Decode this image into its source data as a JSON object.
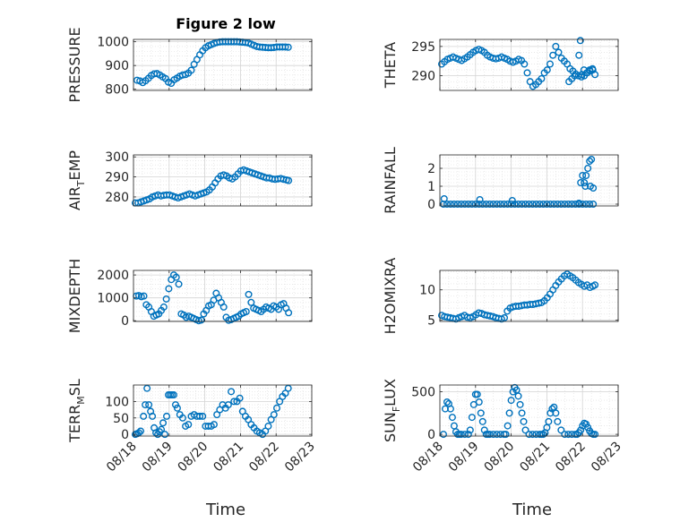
{
  "figure": {
    "title": "Figure 2 low",
    "marker_color": "#0072BD",
    "xlabel": "Time",
    "xticks": [
      18,
      19,
      20,
      21,
      22,
      23
    ],
    "xtick_labels": [
      "08/18",
      "08/19",
      "08/20",
      "08/21",
      "08/22",
      "08/23"
    ]
  },
  "chart_data": [
    {
      "type": "scatter",
      "ylabel": "PRESSURE",
      "ylabel_sub": "",
      "xlim": [
        18,
        23
      ],
      "ylim": [
        795,
        1010
      ],
      "yticks": [
        800,
        900,
        1000
      ],
      "ytick_labels": [
        "800",
        "900",
        "1000"
      ],
      "x": [
        18.1,
        18.18,
        18.26,
        18.34,
        18.42,
        18.5,
        18.58,
        18.66,
        18.74,
        18.82,
        18.9,
        18.98,
        19.06,
        19.14,
        19.22,
        19.3,
        19.38,
        19.46,
        19.54,
        19.62,
        19.7,
        19.78,
        19.86,
        19.94,
        20.02,
        20.1,
        20.18,
        20.26,
        20.34,
        20.42,
        20.5,
        20.58,
        20.66,
        20.74,
        20.82,
        20.9,
        20.98,
        21.06,
        21.14,
        21.22,
        21.3,
        21.38,
        21.46,
        21.54,
        21.62,
        21.7,
        21.78,
        21.86,
        21.94,
        22.02,
        22.1,
        22.18,
        22.26,
        22.34
      ],
      "y": [
        838,
        835,
        828,
        836,
        846,
        858,
        865,
        866,
        860,
        852,
        845,
        830,
        825,
        840,
        847,
        855,
        860,
        862,
        868,
        880,
        905,
        925,
        945,
        962,
        975,
        983,
        988,
        993,
        997,
        999,
        1000,
        1000,
        1000,
        1000,
        1000,
        1000,
        999,
        998,
        997,
        995,
        990,
        985,
        980,
        978,
        977,
        976,
        975,
        975,
        976,
        978,
        978,
        978,
        978,
        977
      ]
    },
    {
      "type": "scatter",
      "ylabel": "THETA",
      "ylabel_sub": "",
      "xlim": [
        18,
        23
      ],
      "ylim": [
        287.5,
        296.2
      ],
      "yticks": [
        290,
        295
      ],
      "ytick_labels": [
        "290",
        "295"
      ],
      "x": [
        18.05,
        18.13,
        18.21,
        18.29,
        18.37,
        18.45,
        18.53,
        18.61,
        18.69,
        18.77,
        18.85,
        18.93,
        19.01,
        19.09,
        19.17,
        19.25,
        19.33,
        19.41,
        19.49,
        19.57,
        19.65,
        19.73,
        19.81,
        19.89,
        19.97,
        20.05,
        20.13,
        20.21,
        20.29,
        20.37,
        20.45,
        20.53,
        20.61,
        20.69,
        20.77,
        20.85,
        20.93,
        21.01,
        21.09,
        21.17,
        21.25,
        21.33,
        21.41,
        21.49,
        21.57,
        21.65,
        21.73,
        21.81,
        21.89,
        21.97,
        22.05,
        22.13,
        22.21,
        22.29,
        22.35,
        22.28,
        22.2,
        22.12,
        22.04,
        21.98,
        21.9,
        21.94,
        21.62,
        21.7,
        21.78
      ],
      "y": [
        292.0,
        292.4,
        292.8,
        293.0,
        293.2,
        293.0,
        292.8,
        292.6,
        292.9,
        293.2,
        293.6,
        294.0,
        294.3,
        294.5,
        294.3,
        294.0,
        293.5,
        293.2,
        293.0,
        292.9,
        293.0,
        293.2,
        293.0,
        292.8,
        292.5,
        292.3,
        292.5,
        292.8,
        292.6,
        292.0,
        290.5,
        289.0,
        288.2,
        288.5,
        289.0,
        289.5,
        290.5,
        291.0,
        292.0,
        293.5,
        295.0,
        294.0,
        293.0,
        292.5,
        292.0,
        291.2,
        290.8,
        290.3,
        290.0,
        289.8,
        290.0,
        290.5,
        290.8,
        291.0,
        290.2,
        291.2,
        291.0,
        290.5,
        291.0,
        290.2,
        293.5,
        296.0,
        289.0,
        289.5,
        290.0
      ]
    },
    {
      "type": "scatter",
      "ylabel": "AIR",
      "ylabel_sub": "T",
      "ylabel_tail": "EMP",
      "xlim": [
        18,
        23
      ],
      "ylim": [
        275.5,
        301
      ],
      "yticks": [
        280,
        290,
        300
      ],
      "ytick_labels": [
        "280",
        "290",
        "300"
      ],
      "x": [
        18.05,
        18.13,
        18.21,
        18.29,
        18.37,
        18.45,
        18.53,
        18.61,
        18.69,
        18.77,
        18.85,
        18.93,
        19.01,
        19.09,
        19.17,
        19.25,
        19.33,
        19.41,
        19.49,
        19.57,
        19.65,
        19.73,
        19.81,
        19.89,
        19.97,
        20.05,
        20.13,
        20.21,
        20.29,
        20.37,
        20.45,
        20.53,
        20.61,
        20.69,
        20.77,
        20.85,
        20.93,
        21.01,
        21.09,
        21.17,
        21.25,
        21.33,
        21.41,
        21.49,
        21.57,
        21.65,
        21.73,
        21.81,
        21.89,
        21.97,
        22.05,
        22.13,
        22.21,
        22.29,
        22.35
      ],
      "y": [
        277.0,
        277.0,
        277.5,
        278.0,
        278.5,
        279.0,
        280.0,
        280.5,
        281.0,
        280.5,
        280.8,
        281.0,
        281.0,
        280.5,
        280.0,
        279.5,
        280.0,
        280.5,
        281.0,
        281.5,
        281.0,
        280.5,
        281.0,
        281.5,
        282.0,
        282.5,
        283.5,
        285.0,
        287.0,
        289.0,
        290.5,
        291.0,
        290.5,
        289.5,
        289.0,
        290.0,
        291.5,
        293.0,
        293.5,
        293.0,
        292.5,
        292.0,
        291.5,
        291.0,
        290.5,
        290.0,
        289.5,
        289.5,
        289.0,
        288.8,
        289.0,
        289.2,
        288.8,
        288.5,
        288.2
      ]
    },
    {
      "type": "scatter",
      "ylabel": "RAINFALL",
      "ylabel_sub": "",
      "xlim": [
        18,
        23
      ],
      "ylim": [
        -0.1,
        2.75
      ],
      "yticks": [
        0,
        1,
        2
      ],
      "ytick_labels": [
        "0",
        "1",
        "2"
      ],
      "x": [
        18.1,
        18.2,
        18.3,
        18.4,
        18.5,
        18.6,
        18.7,
        18.8,
        18.9,
        19.0,
        19.1,
        19.2,
        19.3,
        19.4,
        19.5,
        19.6,
        19.7,
        19.8,
        19.9,
        20.0,
        20.1,
        20.2,
        20.3,
        20.4,
        20.5,
        20.6,
        20.7,
        20.8,
        20.9,
        21.0,
        21.1,
        21.2,
        21.3,
        21.4,
        21.5,
        21.6,
        21.7,
        21.8,
        21.9,
        22.0,
        22.1,
        22.2,
        22.3,
        18.12,
        19.12,
        20.03,
        21.95,
        22.0,
        22.08,
        22.15,
        22.2,
        22.25,
        22.3,
        22.1,
        22.05,
        21.9,
        22.22
      ],
      "y": [
        0,
        0,
        0,
        0,
        0,
        0,
        0,
        0,
        0,
        0,
        0,
        0,
        0,
        0,
        0,
        0,
        0,
        0,
        0,
        0,
        0,
        0,
        0,
        0,
        0,
        0,
        0,
        0,
        0,
        0,
        0,
        0,
        0,
        0,
        0,
        0,
        0,
        0,
        0,
        0,
        0,
        0,
        0,
        0.3,
        0.25,
        0.2,
        1.2,
        1.6,
        1.0,
        2.0,
        2.4,
        2.5,
        0.9,
        1.6,
        1.2,
        0.05,
        1.0
      ]
    },
    {
      "type": "scatter",
      "ylabel": "MIXDEPTH",
      "ylabel_sub": "",
      "xlim": [
        18,
        23
      ],
      "ylim": [
        -30,
        2200
      ],
      "yticks": [
        0,
        1000,
        2000
      ],
      "ytick_labels": [
        "0",
        "1000",
        "2000"
      ],
      "x": [
        18.08,
        18.15,
        18.22,
        18.29,
        18.36,
        18.43,
        18.5,
        18.57,
        18.64,
        18.71,
        18.78,
        18.85,
        18.92,
        18.99,
        19.06,
        19.13,
        19.2,
        19.27,
        19.34,
        19.41,
        19.48,
        19.55,
        19.62,
        19.69,
        19.76,
        19.83,
        19.9,
        19.97,
        20.04,
        20.11,
        20.18,
        20.25,
        20.32,
        20.39,
        20.46,
        20.53,
        20.6,
        20.67,
        20.74,
        20.81,
        20.88,
        20.95,
        21.02,
        21.09,
        21.16,
        21.23,
        21.3,
        21.37,
        21.44,
        21.51,
        21.58,
        21.65,
        21.72,
        21.79,
        21.86,
        21.93,
        22.0,
        22.07,
        22.14,
        22.21,
        22.28,
        22.35
      ],
      "y": [
        1080,
        1100,
        1050,
        1080,
        700,
        600,
        400,
        200,
        250,
        300,
        450,
        600,
        950,
        1400,
        1800,
        2000,
        1900,
        1600,
        300,
        250,
        150,
        200,
        150,
        100,
        50,
        0,
        30,
        300,
        450,
        650,
        700,
        900,
        1200,
        1000,
        800,
        600,
        150,
        20,
        50,
        100,
        150,
        200,
        300,
        350,
        400,
        1150,
        800,
        550,
        500,
        450,
        400,
        500,
        600,
        550,
        500,
        650,
        600,
        500,
        700,
        750,
        550,
        350
      ]
    },
    {
      "type": "scatter",
      "ylabel": "H2OMIXRA",
      "ylabel_sub": "",
      "xlim": [
        18,
        23
      ],
      "ylim": [
        4.8,
        13.2
      ],
      "yticks": [
        5,
        10
      ],
      "ytick_labels": [
        "5",
        "10"
      ],
      "x": [
        18.05,
        18.13,
        18.21,
        18.29,
        18.37,
        18.45,
        18.53,
        18.61,
        18.69,
        18.77,
        18.85,
        18.93,
        19.01,
        19.09,
        19.17,
        19.25,
        19.33,
        19.41,
        19.49,
        19.57,
        19.65,
        19.73,
        19.81,
        19.89,
        19.97,
        20.05,
        20.13,
        20.21,
        20.29,
        20.37,
        20.45,
        20.53,
        20.61,
        20.69,
        20.77,
        20.85,
        20.93,
        21.01,
        21.09,
        21.17,
        21.25,
        21.33,
        21.41,
        21.49,
        21.57,
        21.65,
        21.73,
        21.81,
        21.89,
        21.97,
        22.05,
        22.13,
        22.21,
        22.29,
        22.35
      ],
      "y": [
        5.8,
        5.6,
        5.5,
        5.4,
        5.3,
        5.2,
        5.4,
        5.6,
        5.8,
        5.5,
        5.4,
        5.6,
        5.9,
        6.2,
        6.1,
        5.9,
        5.8,
        5.7,
        5.6,
        5.4,
        5.3,
        5.2,
        5.4,
        6.5,
        7.0,
        7.2,
        7.3,
        7.3,
        7.4,
        7.5,
        7.5,
        7.6,
        7.6,
        7.7,
        7.8,
        7.9,
        8.2,
        8.7,
        9.3,
        10.0,
        10.7,
        11.3,
        11.8,
        12.3,
        12.6,
        12.3,
        12.0,
        11.6,
        11.2,
        10.9,
        10.6,
        10.8,
        10.4,
        10.6,
        10.8
      ]
    },
    {
      "type": "scatter",
      "ylabel": "TERR",
      "ylabel_sub": "M",
      "ylabel_tail": "SL",
      "xlim": [
        18,
        23
      ],
      "ylim": [
        -5,
        150
      ],
      "yticks": [
        0,
        50,
        100
      ],
      "ytick_labels": [
        "0",
        "50",
        "100"
      ],
      "x": [
        18.05,
        18.1,
        18.15,
        18.2,
        18.28,
        18.33,
        18.38,
        18.43,
        18.48,
        18.53,
        18.58,
        18.63,
        18.68,
        18.73,
        18.78,
        18.83,
        18.88,
        18.93,
        18.98,
        19.03,
        19.08,
        19.13,
        19.18,
        19.23,
        19.3,
        19.38,
        19.46,
        19.54,
        19.62,
        19.7,
        19.78,
        19.86,
        19.94,
        20.02,
        20.1,
        20.18,
        20.26,
        20.34,
        20.42,
        20.5,
        20.58,
        20.66,
        20.74,
        20.82,
        20.9,
        20.98,
        21.06,
        21.14,
        21.22,
        21.3,
        21.38,
        21.46,
        21.54,
        21.62,
        21.7,
        21.78,
        21.86,
        21.94,
        22.02,
        22.1,
        22.18,
        22.26,
        22.34
      ],
      "y": [
        0,
        2,
        5,
        10,
        55,
        90,
        140,
        90,
        70,
        55,
        20,
        5,
        0,
        8,
        15,
        35,
        0,
        55,
        120,
        120,
        120,
        120,
        90,
        80,
        60,
        50,
        25,
        30,
        55,
        60,
        55,
        55,
        55,
        25,
        25,
        25,
        30,
        60,
        75,
        90,
        80,
        90,
        130,
        100,
        100,
        110,
        70,
        55,
        45,
        30,
        20,
        10,
        5,
        0,
        10,
        25,
        45,
        60,
        80,
        100,
        115,
        125,
        140
      ]
    },
    {
      "type": "scatter",
      "ylabel": "SUN",
      "ylabel_sub": "F",
      "ylabel_tail": "LUX",
      "xlim": [
        18,
        23
      ],
      "ylim": [
        -20,
        580
      ],
      "yticks": [
        0,
        500
      ],
      "ytick_labels": [
        "0",
        "500"
      ],
      "x": [
        18.1,
        18.15,
        18.2,
        18.25,
        18.3,
        18.35,
        18.4,
        18.45,
        18.5,
        18.55,
        18.6,
        18.7,
        18.8,
        18.85,
        18.9,
        18.95,
        19.0,
        19.05,
        19.1,
        19.15,
        19.2,
        19.25,
        19.3,
        19.35,
        19.4,
        19.5,
        19.6,
        19.7,
        19.8,
        19.85,
        19.9,
        19.95,
        20.0,
        20.05,
        20.1,
        20.15,
        20.2,
        20.25,
        20.3,
        20.35,
        20.4,
        20.5,
        20.6,
        20.7,
        20.8,
        20.85,
        20.9,
        20.95,
        21.0,
        21.05,
        21.1,
        21.15,
        21.2,
        21.25,
        21.3,
        21.4,
        21.5,
        21.6,
        21.7,
        21.8,
        21.85,
        21.9,
        21.95,
        22.0,
        22.05,
        22.1,
        22.15,
        22.2,
        22.25,
        22.3,
        22.35
      ],
      "y": [
        0,
        300,
        380,
        360,
        300,
        200,
        100,
        30,
        0,
        0,
        0,
        0,
        0,
        50,
        200,
        350,
        470,
        470,
        380,
        250,
        150,
        50,
        0,
        0,
        0,
        0,
        0,
        0,
        0,
        0,
        100,
        250,
        400,
        500,
        550,
        520,
        450,
        350,
        250,
        150,
        50,
        0,
        0,
        0,
        0,
        0,
        0,
        20,
        80,
        150,
        250,
        300,
        320,
        250,
        150,
        50,
        0,
        0,
        0,
        0,
        0,
        20,
        50,
        100,
        130,
        120,
        80,
        40,
        10,
        0,
        0
      ]
    }
  ]
}
